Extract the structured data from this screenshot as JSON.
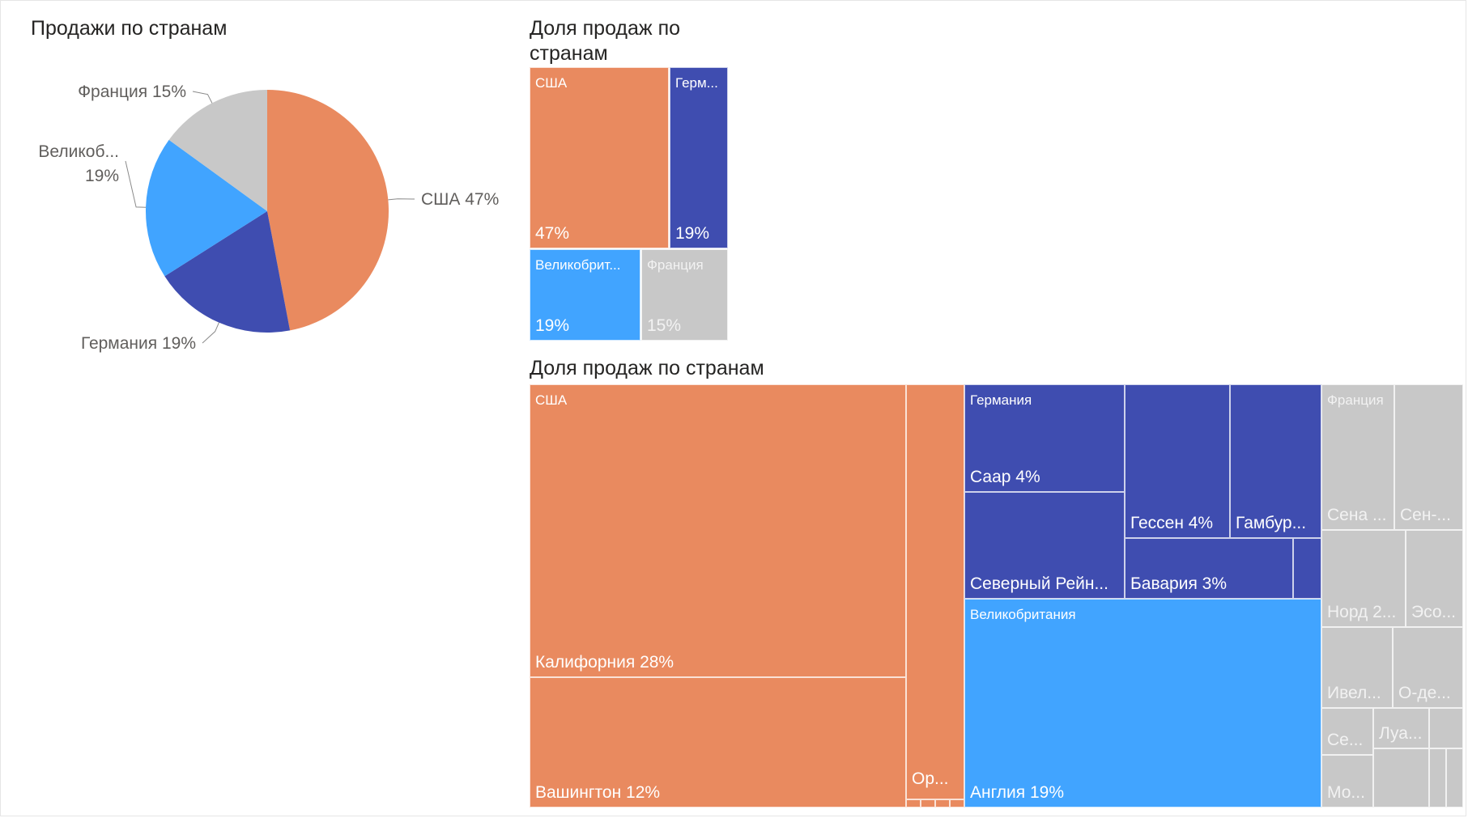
{
  "colors": {
    "США": "#E98A5F",
    "Германия": "#3F4DB0",
    "Великобритания": "#41A4FF",
    "Франция": "#C8C8C8"
  },
  "chart_data": [
    {
      "type": "pie",
      "title": "Продажи по странам",
      "categories": [
        "США",
        "Германия",
        "Великобритания",
        "Франция"
      ],
      "values": [
        47,
        19,
        19,
        15
      ],
      "unit": "%",
      "labels": [
        {
          "line1": "США 47%",
          "line2": ""
        },
        {
          "line1": "Германия 19%",
          "line2": ""
        },
        {
          "line1": "Великоб...",
          "line2": "19%"
        },
        {
          "line1": "Франция 15%",
          "line2": ""
        }
      ]
    },
    {
      "type": "treemap",
      "title": "Доля продаж по странам",
      "categories": [
        "США",
        "Германия",
        "Великобритания",
        "Франция"
      ],
      "values": [
        47,
        19,
        19,
        15
      ],
      "unit": "%",
      "display_names": [
        "США",
        "Герм...",
        "Великобрит...",
        "Франция"
      ],
      "display_values": [
        "47%",
        "19%",
        "19%",
        "15%"
      ]
    },
    {
      "type": "treemap",
      "title": "Доля продаж по странам",
      "groups": [
        {
          "name": "США",
          "value": 47,
          "children": [
            {
              "label": "Калифорния 28%",
              "value": 28
            },
            {
              "label": "Вашингтон 12%",
              "value": 12
            },
            {
              "label": "Ор...",
              "value": 3
            },
            {
              "label": "",
              "value": 1
            },
            {
              "label": "",
              "value": 1
            },
            {
              "label": "",
              "value": 1
            },
            {
              "label": "",
              "value": 1
            }
          ]
        },
        {
          "name": "Германия",
          "value": 19,
          "children": [
            {
              "label": "Саар 4%",
              "value": 4
            },
            {
              "label": "Северный Рейн...",
              "value": 4
            },
            {
              "label": "Гессен 4%",
              "value": 4
            },
            {
              "label": "Гамбур...",
              "value": 3
            },
            {
              "label": "Бавария 3%",
              "value": 3
            },
            {
              "label": "",
              "value": 1
            }
          ]
        },
        {
          "name": "Великобритания",
          "value": 19,
          "children": [
            {
              "label": "Англия 19%",
              "value": 19
            }
          ]
        },
        {
          "name": "Франция",
          "value": 15,
          "children": [
            {
              "label": "Сена ...",
              "value": 2
            },
            {
              "label": "Сен-...",
              "value": 2
            },
            {
              "label": "Норд 2...",
              "value": 2
            },
            {
              "label": "Эсо...",
              "value": 1.5
            },
            {
              "label": "Ивел...",
              "value": 1.5
            },
            {
              "label": "О-де...",
              "value": 1.5
            },
            {
              "label": "Се...",
              "value": 1
            },
            {
              "label": "Луа...",
              "value": 1
            },
            {
              "label": "Мо...",
              "value": 1
            },
            {
              "label": "",
              "value": 0.5
            },
            {
              "label": "",
              "value": 0.5
            },
            {
              "label": "",
              "value": 0.5
            },
            {
              "label": "",
              "value": 0.5
            }
          ]
        }
      ]
    }
  ]
}
